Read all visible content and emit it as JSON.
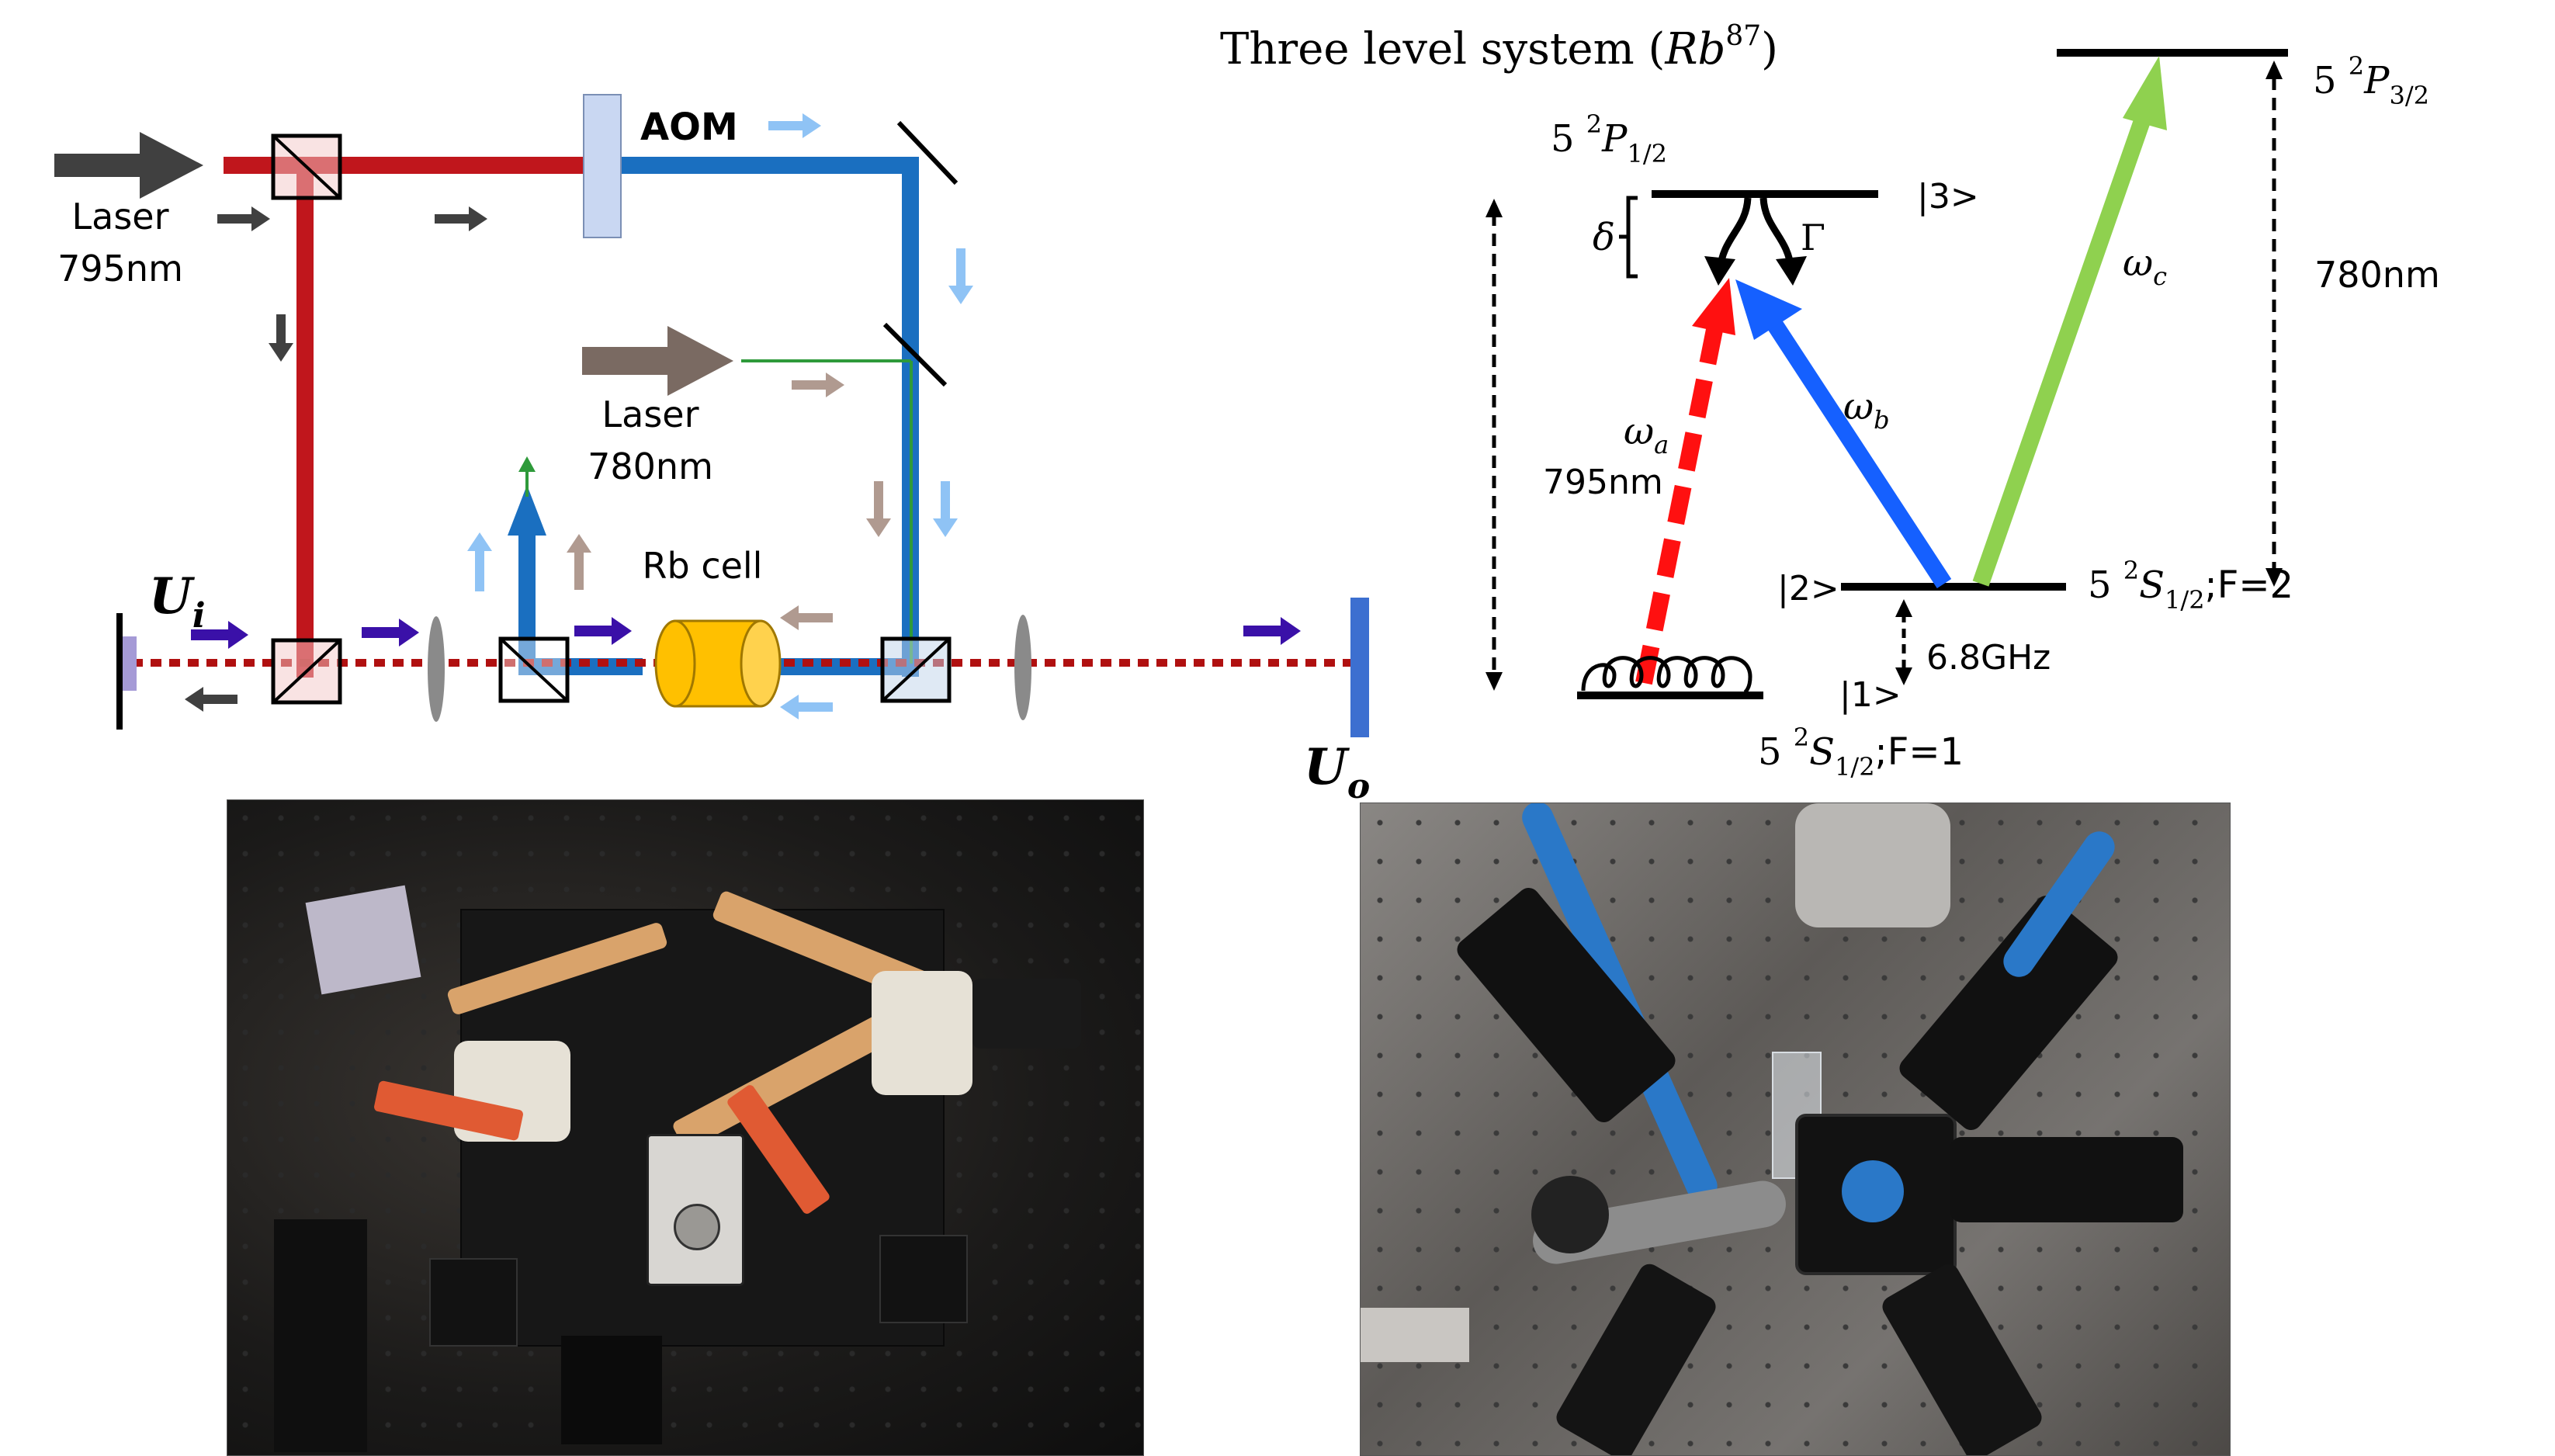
{
  "setup": {
    "laser1_line1": "Laser",
    "laser1_line2": "795nm",
    "laser2_line1": "Laser",
    "laser2_line2": "780nm",
    "aom": "AOM",
    "rb_cell": "Rb cell",
    "ui_main": "U",
    "ui_sub": "i",
    "uo_main": "U",
    "uo_sub": "o"
  },
  "levels": {
    "title_main": "Three level system (",
    "title_rb": "Rb",
    "title_sup": "87",
    "title_close": ")",
    "p12_n": "5 ",
    "p12_sup": "2",
    "p12_P": "P",
    "p12_sub": "1/2",
    "p32_n": "5 ",
    "p32_sup": "2",
    "p32_P": "P",
    "p32_sub": "3/2",
    "s12f2_n": "5 ",
    "s12f2_sup": "2",
    "s12f2_S": "S",
    "s12f2_sub": "1/2",
    "s12f2_tail": ";F=2",
    "s12f1_n": "5 ",
    "s12f1_sup": "2",
    "s12f1_S": "S",
    "s12f1_sub": "1/2",
    "s12f1_tail": ";F=1",
    "ket3": "|3>",
    "ket2": "|2>",
    "ket1": "|1>",
    "delta": "δ",
    "gamma": "Γ",
    "omega": "ω",
    "omega_a_sub": "a",
    "omega_b_sub": "b",
    "omega_c_sub": "c",
    "wl_795": "795nm",
    "wl_780": "780nm",
    "hyperfine": "6.8GHz"
  },
  "colors": {
    "laser795": "#c0161c",
    "laser780_path": "#1a6fc0",
    "probe_green": "#2e9a3a",
    "omega_a": "#ff1010",
    "omega_b": "#1560ff",
    "omega_c": "#8fd14f",
    "rb_cell": "#ffc000",
    "aom": "#c9d7f2",
    "arrow_dark": "#404040",
    "arrow_light_blue": "#8fc3f5",
    "arrow_tan": "#b09a90",
    "arrow_purple": "#3a10a8"
  }
}
